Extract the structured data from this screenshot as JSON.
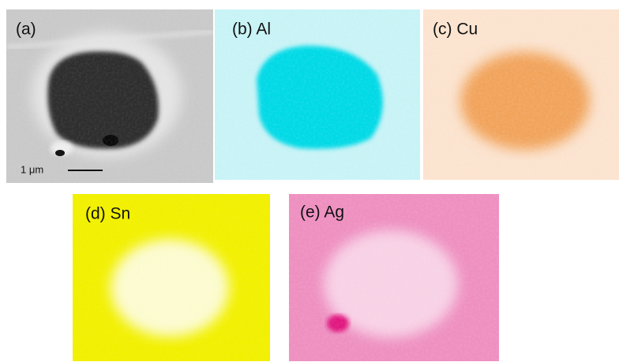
{
  "panels": [
    {
      "label": "(a)",
      "scale_bar": "1 μm"
    },
    {
      "label": "(b) Al"
    },
    {
      "label": "(c) Cu"
    },
    {
      "label": "(d) Sn"
    },
    {
      "label": "(e) Ag"
    }
  ]
}
